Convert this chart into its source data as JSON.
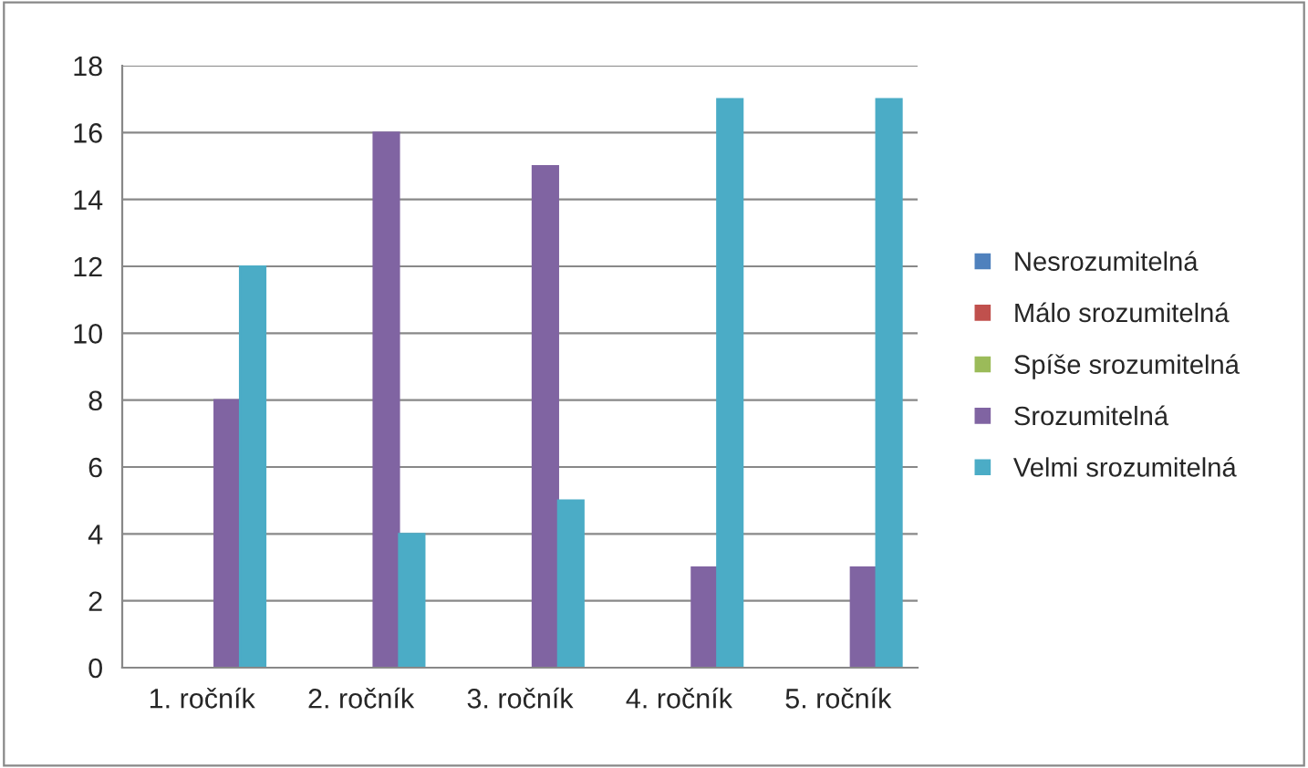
{
  "chart_data": {
    "type": "bar",
    "categories": [
      "1. ročník",
      "2. ročník",
      "3. ročník",
      "4. ročník",
      "5. ročník"
    ],
    "series": [
      {
        "name": "Nesrozumitelná",
        "color": "#4f81bd",
        "values": [
          0,
          0,
          0,
          0,
          0
        ]
      },
      {
        "name": "Málo srozumitelná",
        "color": "#c0504d",
        "values": [
          0,
          0,
          0,
          0,
          0
        ]
      },
      {
        "name": "Spíše srozumitelná",
        "color": "#9bbb59",
        "values": [
          0,
          0,
          0,
          0,
          0
        ]
      },
      {
        "name": "Srozumitelná",
        "color": "#8064a2",
        "values": [
          8,
          16,
          15,
          3,
          3
        ]
      },
      {
        "name": "Velmi srozumitelná",
        "color": "#4bacc6",
        "values": [
          12,
          4,
          5,
          17,
          17
        ]
      }
    ],
    "ylim": [
      0,
      18
    ],
    "yticks": [
      0,
      2,
      4,
      6,
      8,
      10,
      12,
      14,
      16,
      18
    ],
    "grid": "y",
    "legend": "right"
  }
}
